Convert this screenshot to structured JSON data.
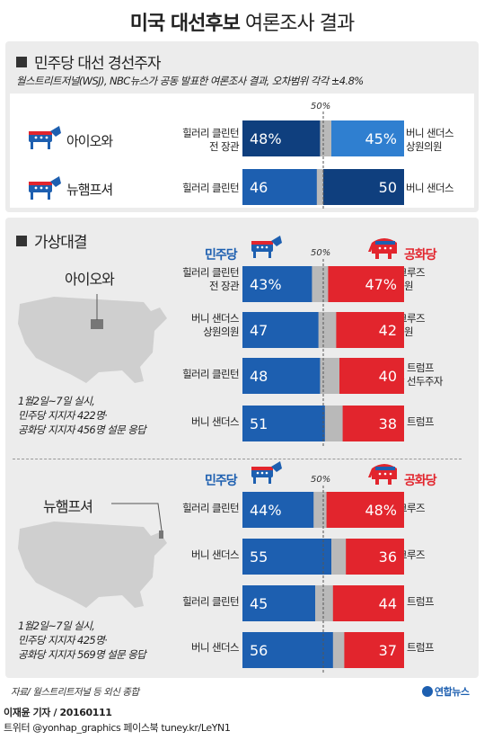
{
  "title": {
    "bold": "미국 대선후보",
    "normal": "여론조사 결과"
  },
  "section1": {
    "title": "민주당 대선 경선주자",
    "note": "월스트리트저널(WSJ), NBC뉴스가 공동 발표한 여론조사 결과, 오차범위 각각 ±4.8%",
    "fifty_label": "50%",
    "rows": [
      {
        "state": "아이오와",
        "left_label": [
          "힐러리 클린턴",
          "전 장관"
        ],
        "right_label": [
          "버니 샌더스",
          "상원의원"
        ],
        "left_text": "48%",
        "right_text": "45%"
      },
      {
        "state": "뉴햄프셔",
        "left_label": [
          "힐러리 클린턴"
        ],
        "right_label": [
          "버니 샌더스"
        ],
        "left_text": "46",
        "right_text": "50"
      }
    ]
  },
  "section2": {
    "title": "가상대결",
    "party_dem": "민주당",
    "party_rep": "공화당",
    "fifty_label": "50%",
    "iowa": {
      "state": "아이오와",
      "caption": [
        "1월2일~7일 실시,",
        "민주당 지지자 422명·",
        "공화당 지지자 456명 설문 응답"
      ],
      "rows": [
        {
          "left_label": [
            "힐러리 클린턴",
            "전 장관"
          ],
          "right_label": [
            "테드 크루즈",
            "상원의원"
          ],
          "left_text": "43%",
          "right_text": "47%"
        },
        {
          "left_label": [
            "버니 샌더스",
            "상원의원"
          ],
          "right_label": [
            "테드 크루즈",
            "상원의원"
          ],
          "left_text": "47",
          "right_text": "42"
        },
        {
          "left_label": [
            "힐러리 클린턴"
          ],
          "right_label": [
            "도널드 트럼프",
            "공화당 선두주자"
          ],
          "left_text": "48",
          "right_text": "40"
        },
        {
          "left_label": [
            "버니 샌더스"
          ],
          "right_label": [
            "도널드 트럼프"
          ],
          "left_text": "51",
          "right_text": "38"
        }
      ]
    },
    "nh": {
      "state": "뉴햄프셔",
      "caption": [
        "1월2일~7일 실시,",
        "민주당 지지자 425명·",
        "공화당 지지자 569명 설문 응답"
      ],
      "rows": [
        {
          "left_label": [
            "힐러리 클린턴"
          ],
          "right_label": [
            "테드 크루즈"
          ],
          "left_text": "44%",
          "right_text": "48%"
        },
        {
          "left_label": [
            "버니 샌더스"
          ],
          "right_label": [
            "테드 크루즈"
          ],
          "left_text": "55",
          "right_text": "36"
        },
        {
          "left_label": [
            "힐러리 클린턴"
          ],
          "right_label": [
            "도널드 트럼프"
          ],
          "left_text": "45",
          "right_text": "44"
        },
        {
          "left_label": [
            "버니 샌더스"
          ],
          "right_label": [
            "도널드 트럼프"
          ],
          "left_text": "56",
          "right_text": "37"
        }
      ]
    }
  },
  "source": "자료/ 월스트리트저널 등 외신 종합",
  "logo": "연합뉴스",
  "footer": {
    "reporter": "이재윤 기자 / 20160111",
    "social": "트위터 @yonhap_graphics  페이스북 tuney.kr/LeYN1"
  },
  "colors": {
    "dem_dark": "#0f3f7e",
    "dem": "#1d5fb0",
    "dem_light": "#2f7fd0",
    "rep": "#e2252d",
    "undecided": "#b9b9b9",
    "map": "#cfcfcf"
  },
  "chart_data": [
    {
      "type": "bar",
      "title": "민주당 대선 경선주자",
      "categories": [
        "아이오와",
        "뉴햄프셔"
      ],
      "series": [
        {
          "name": "힐러리 클린턴",
          "values": [
            48,
            46
          ]
        },
        {
          "name": "버니 샌더스",
          "values": [
            45,
            50
          ]
        }
      ],
      "xlim": [
        0,
        100
      ]
    },
    {
      "type": "bar",
      "title": "가상대결 아이오와",
      "categories": [
        "힐러리 클린턴 vs 테드 크루즈",
        "버니 샌더스 vs 테드 크루즈",
        "힐러리 클린턴 vs 도널드 트럼프",
        "버니 샌더스 vs 도널드 트럼프"
      ],
      "series": [
        {
          "name": "민주당",
          "values": [
            43,
            47,
            48,
            51
          ]
        },
        {
          "name": "공화당",
          "values": [
            47,
            42,
            40,
            38
          ]
        }
      ],
      "xlim": [
        0,
        100
      ]
    },
    {
      "type": "bar",
      "title": "가상대결 뉴햄프셔",
      "categories": [
        "힐러리 클린턴 vs 테드 크루즈",
        "버니 샌더스 vs 테드 크루즈",
        "힐러리 클린턴 vs 도널드 트럼프",
        "버니 샌더스 vs 도널드 트럼프"
      ],
      "series": [
        {
          "name": "민주당",
          "values": [
            44,
            55,
            45,
            56
          ]
        },
        {
          "name": "공화당",
          "values": [
            48,
            36,
            44,
            37
          ]
        }
      ],
      "xlim": [
        0,
        100
      ]
    }
  ]
}
